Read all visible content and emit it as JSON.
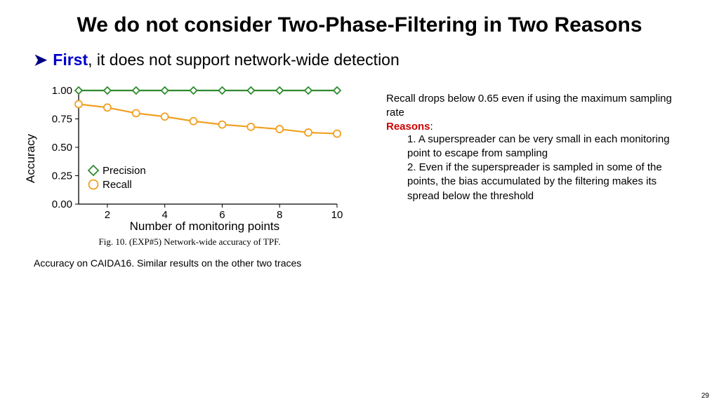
{
  "title": "We do not consider Two-Phase-Filtering in Two Reasons",
  "title_fontsize": 30,
  "bullet": {
    "arrow": "➤",
    "first": "First",
    "rest": ", it does not support network-wide detection",
    "fontsize": 23
  },
  "chart": {
    "type": "line",
    "xlabel": "Number of monitoring points",
    "ylabel": "Accuracy",
    "axis_label_fontsize": 17,
    "tick_fontsize": 15,
    "xlim": [
      1,
      10
    ],
    "ylim": [
      0.0,
      1.0
    ],
    "xticks": [
      2,
      4,
      6,
      8,
      10
    ],
    "yticks": [
      0.0,
      0.25,
      0.5,
      0.75,
      1.0
    ],
    "ytick_labels": [
      "0.00",
      "0.25",
      "0.50",
      "0.75",
      "1.00"
    ],
    "series": [
      {
        "name": "Precision",
        "marker": "diamond",
        "color": "#2e8b2e",
        "line_width": 2.2,
        "marker_size": 10,
        "x": [
          1,
          2,
          3,
          4,
          5,
          6,
          7,
          8,
          9,
          10
        ],
        "y": [
          1.0,
          1.0,
          1.0,
          1.0,
          1.0,
          1.0,
          1.0,
          1.0,
          1.0,
          1.0
        ]
      },
      {
        "name": "Recall",
        "marker": "circle",
        "color": "#f0a020",
        "line_width": 2.2,
        "marker_size": 10,
        "x": [
          1,
          2,
          3,
          4,
          5,
          6,
          7,
          8,
          9,
          10
        ],
        "y": [
          0.88,
          0.85,
          0.8,
          0.77,
          0.73,
          0.7,
          0.68,
          0.66,
          0.63,
          0.62
        ]
      }
    ],
    "legend": {
      "position": "lower-left-inside",
      "entries": [
        "Precision",
        "Recall"
      ],
      "fontsize": 15
    },
    "plot_bg": "#ffffff",
    "axis_color": "#000000"
  },
  "fig_caption": "Fig. 10.   (EXP#5) Network-wide accuracy of TPF.",
  "fig_caption_fontsize": 13,
  "chart_note": "Accuracy on CAIDA16. Similar results on the other two traces",
  "chart_note_fontsize": 14,
  "side_text": {
    "recall_line": "Recall drops below 0.65 even if using the maximum sampling rate",
    "reasons_label": "Reasons",
    "reasons_colon": ":",
    "reason1": "1. A superspreader can be very small in each monitoring point to escape from sampling",
    "reason2": "2. Even if the superspreader is sampled in some of the points, the bias accumulated by the filtering makes its spread below the threshold",
    "fontsize": 15
  },
  "page_number": "29",
  "page_number_fontsize": 10
}
